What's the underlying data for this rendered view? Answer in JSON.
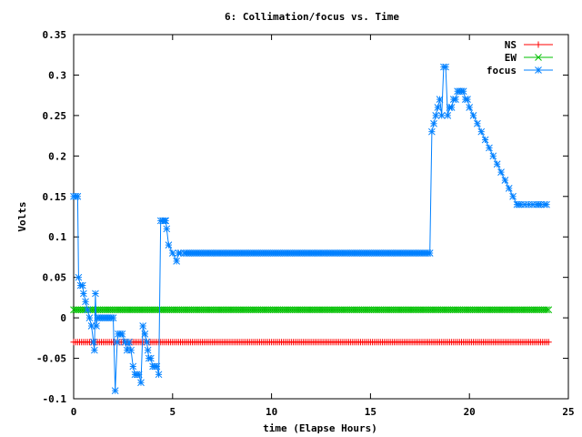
{
  "chart_data": {
    "type": "line",
    "title": "6: Collimation/focus vs. Time",
    "xlabel": "time (Elapse Hours)",
    "ylabel": "Volts",
    "xlim": [
      0,
      25
    ],
    "ylim": [
      -0.1,
      0.35
    ],
    "xticks": [
      "0",
      "5",
      "10",
      "15",
      "20",
      "25"
    ],
    "yticks": [
      "-0.1",
      "-0.05",
      "0",
      "0.05",
      "0.1",
      "0.15",
      "0.2",
      "0.25",
      "0.3",
      "0.35"
    ],
    "legend_position": "top-right",
    "series": [
      {
        "name": "NS",
        "color": "#ff0000",
        "marker": "plus",
        "x": [
          0,
          24
        ],
        "y": [
          -0.03,
          -0.03
        ]
      },
      {
        "name": "EW",
        "color": "#00c000",
        "marker": "cross",
        "x": [
          0,
          24
        ],
        "y": [
          0.01,
          0.01
        ]
      },
      {
        "name": "focus",
        "color": "#0080ff",
        "marker": "star",
        "x": [
          0.0,
          0.2,
          0.25,
          0.35,
          0.45,
          0.5,
          0.6,
          0.7,
          0.8,
          0.9,
          1.0,
          1.05,
          1.1,
          1.15,
          1.2,
          1.3,
          1.4,
          1.5,
          1.6,
          1.7,
          1.8,
          1.9,
          2.0,
          2.1,
          2.2,
          2.25,
          2.35,
          2.45,
          2.6,
          2.7,
          2.8,
          2.9,
          3.0,
          3.1,
          3.2,
          3.3,
          3.4,
          3.5,
          3.6,
          3.7,
          3.75,
          3.8,
          3.9,
          4.0,
          4.1,
          4.2,
          4.3,
          4.4,
          4.5,
          4.6,
          4.65,
          4.7,
          4.8,
          5.0,
          5.2,
          5.3,
          5.4,
          5.6,
          5.8,
          6.0,
          8.0,
          10.0,
          12.0,
          14.0,
          16.0,
          17.0,
          18.0,
          18.1,
          18.2,
          18.3,
          18.4,
          18.5,
          18.6,
          18.7,
          18.8,
          18.9,
          19.0,
          19.1,
          19.2,
          19.3,
          19.4,
          19.5,
          19.6,
          19.7,
          19.8,
          19.9,
          20.0,
          20.2,
          20.4,
          20.6,
          20.8,
          21.0,
          21.2,
          21.4,
          21.6,
          21.8,
          22.0,
          22.2,
          22.4,
          22.6,
          22.8,
          23.0,
          23.2,
          23.4,
          23.6,
          23.8,
          23.9
        ],
        "y": [
          0.15,
          0.15,
          0.05,
          0.04,
          0.04,
          0.03,
          0.02,
          0.01,
          0.0,
          -0.01,
          -0.03,
          -0.04,
          0.03,
          -0.01,
          0.0,
          0.0,
          0.0,
          0.0,
          0.0,
          0.0,
          0.0,
          0.0,
          0.0,
          -0.09,
          -0.03,
          -0.02,
          -0.02,
          -0.02,
          -0.03,
          -0.04,
          -0.03,
          -0.04,
          -0.06,
          -0.07,
          -0.07,
          -0.07,
          -0.08,
          -0.01,
          -0.02,
          -0.03,
          -0.04,
          -0.05,
          -0.05,
          -0.06,
          -0.06,
          -0.06,
          -0.07,
          0.12,
          0.12,
          0.12,
          0.12,
          0.11,
          0.09,
          0.08,
          0.07,
          0.08,
          0.08,
          0.08,
          0.08,
          0.08,
          0.08,
          0.08,
          0.08,
          0.08,
          0.08,
          0.08,
          0.08,
          0.23,
          0.24,
          0.25,
          0.26,
          0.27,
          0.25,
          0.31,
          0.31,
          0.25,
          0.26,
          0.26,
          0.27,
          0.27,
          0.28,
          0.28,
          0.28,
          0.28,
          0.27,
          0.27,
          0.26,
          0.25,
          0.24,
          0.23,
          0.22,
          0.21,
          0.2,
          0.19,
          0.18,
          0.17,
          0.16,
          0.15,
          0.14,
          0.14,
          0.14,
          0.14,
          0.14,
          0.14,
          0.14,
          0.14,
          0.14
        ]
      }
    ]
  }
}
